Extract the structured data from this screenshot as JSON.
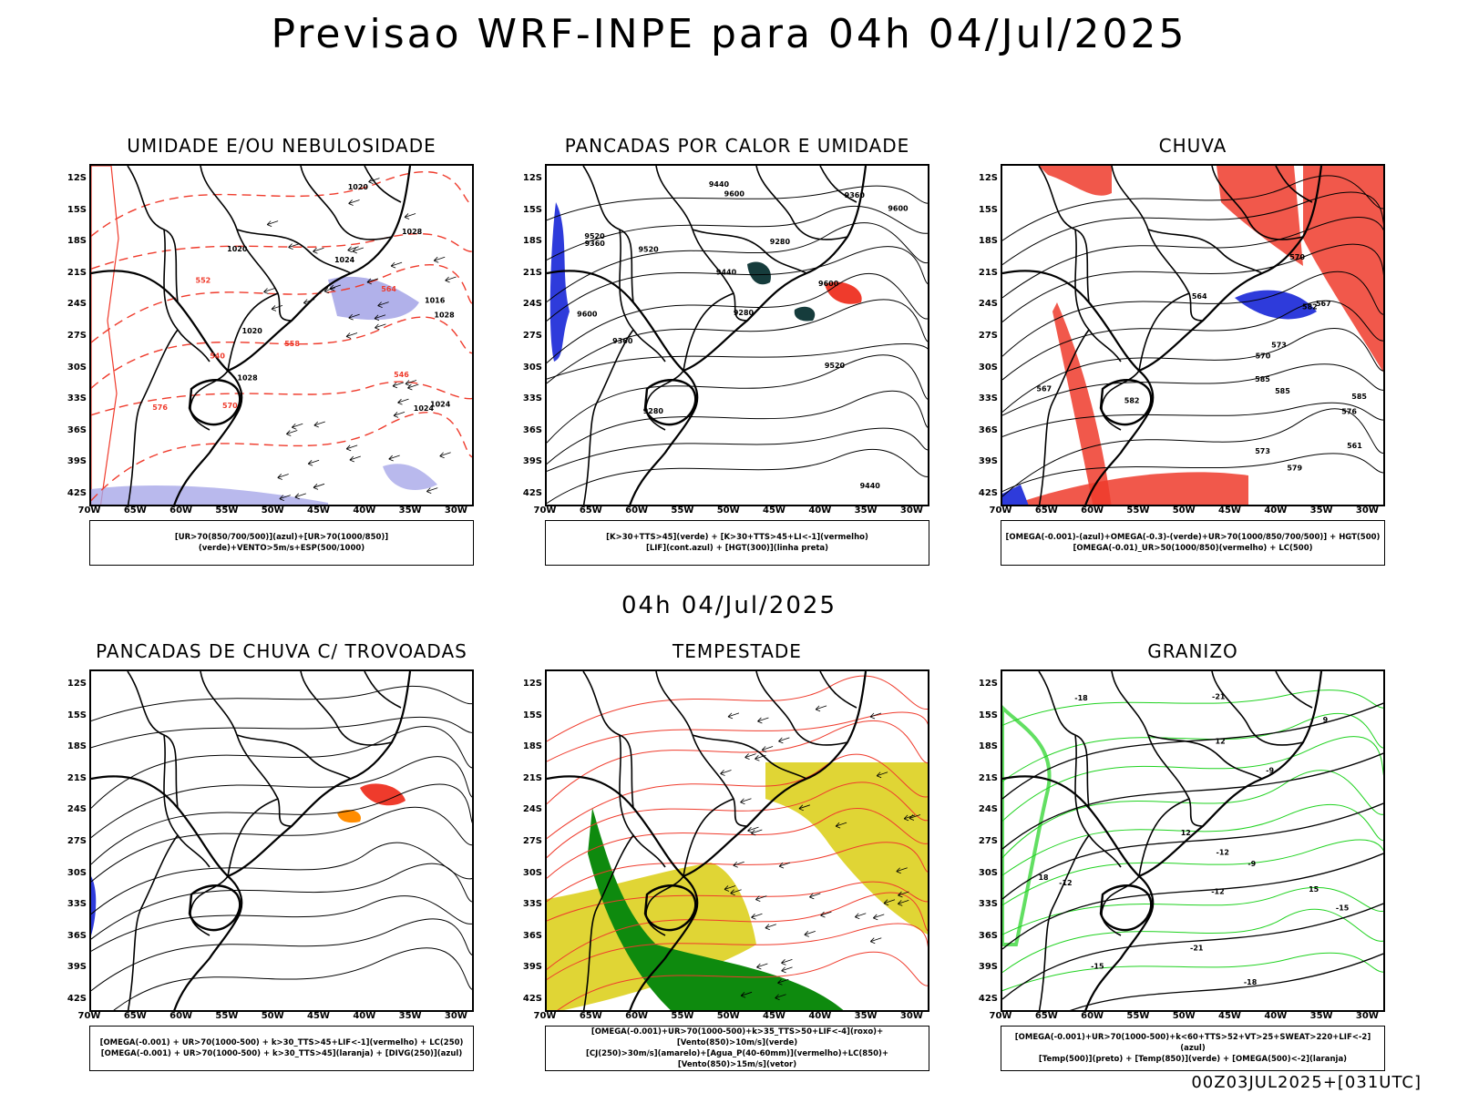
{
  "title": "Previsao WRF-INPE  para 04h 04/Jul/2025",
  "subtitle": "04h 04/Jul/2025",
  "footer": "00Z03JUL2025+[031UTC]",
  "lat_labels": [
    "12S",
    "15S",
    "18S",
    "21S",
    "24S",
    "27S",
    "30S",
    "33S",
    "36S",
    "39S",
    "42S"
  ],
  "lon_labels": [
    "70W",
    "65W",
    "60W",
    "55W",
    "50W",
    "45W",
    "40W",
    "35W",
    "30W"
  ],
  "colors": {
    "red": "#ef3b2c",
    "green": "#1fd21f",
    "blue": "#2e3bdb",
    "lavender": "#a8a8e8",
    "yellow": "#e0d535",
    "darkgreen": "#0e8a0e",
    "orange": "#ff8c00",
    "teal": "#163c3c"
  },
  "panels": [
    {
      "title": "UMIDADE E/OU NEBULOSIDADE",
      "legend": [
        "[UR>70(850/700/500)](azul)+[UR>70(1000/850)](verde)+VENTO>5m/s+ESP(500/1000)"
      ],
      "contours": [
        "1020",
        "1016",
        "1024",
        "1028",
        "1020",
        "1024",
        "1028",
        "1020",
        "1024",
        "1028",
        "552",
        "546",
        "564",
        "570",
        "576",
        "558",
        "540"
      ]
    },
    {
      "title": "PANCADAS POR CALOR E UMIDADE",
      "legend": [
        "[K>30+TTS>45](verde) + [K>30+TTS>45+LI<-1](vermelho)",
        "[LIF](cont.azul) + [HGT(300)](linha preta)"
      ],
      "contours": [
        "9600",
        "9600",
        "9600",
        "9600",
        "9520",
        "9440",
        "9360",
        "9280",
        "9440",
        "9360",
        "9280",
        "9520",
        "9440",
        "9360",
        "9520",
        "9280"
      ]
    },
    {
      "title": "CHUVA",
      "legend": [
        "[OMEGA(-0.001)-(azul)+OMEGA(-0.3)-(verde)+UR>70(1000/850/700/500)] + HGT(500)",
        "[OMEGA(-0.01)_UR>50(1000/850)(vermelho) + LC(500)"
      ],
      "contours": [
        "585",
        "585",
        "582",
        "576",
        "573",
        "570",
        "567",
        "564",
        "561",
        "579",
        "573",
        "570",
        "567",
        "585",
        "582"
      ]
    },
    {
      "title": "PANCADAS DE CHUVA C/ TROVOADAS",
      "legend": [
        "[OMEGA(-0.001) + UR>70(1000-500) + k>30_TTS>45+LIF<-1](vermelho) + LC(250)",
        "[OMEGA(-0.001) + UR>70(1000-500) + k>30_TTS>45](laranja) + [DIVG(250)](azul)"
      ],
      "contours": []
    },
    {
      "title": "TEMPESTADE",
      "legend": [
        "[OMEGA(-0.001)+UR>70(1000-500)+k>35_TTS>50+LIF<-4](roxo)+[Vento(850)>10m/s](verde)",
        "[CJ(250)>30m/s](amarelo)+[Agua_P(40-60mm)](vermelho)+LC(850)+[Vento(850)>15m/s](vetor)"
      ],
      "contours": []
    },
    {
      "title": "GRANIZO",
      "legend": [
        "[OMEGA(-0.001)+UR>70(1000-500)+k<60+TTS>52+VT>25+SWEAT>220+LIF<-2](azul)",
        "[Temp(500)](preto) + [Temp(850)](verde) + [OMEGA(500)<-2](laranja)"
      ],
      "contours": [
        "-9",
        "-12",
        "-12",
        "-15",
        "-18",
        "-21",
        "-18",
        "-15",
        "-12",
        "-9",
        "-21",
        "12",
        "15",
        "9",
        "12",
        "18"
      ]
    }
  ]
}
